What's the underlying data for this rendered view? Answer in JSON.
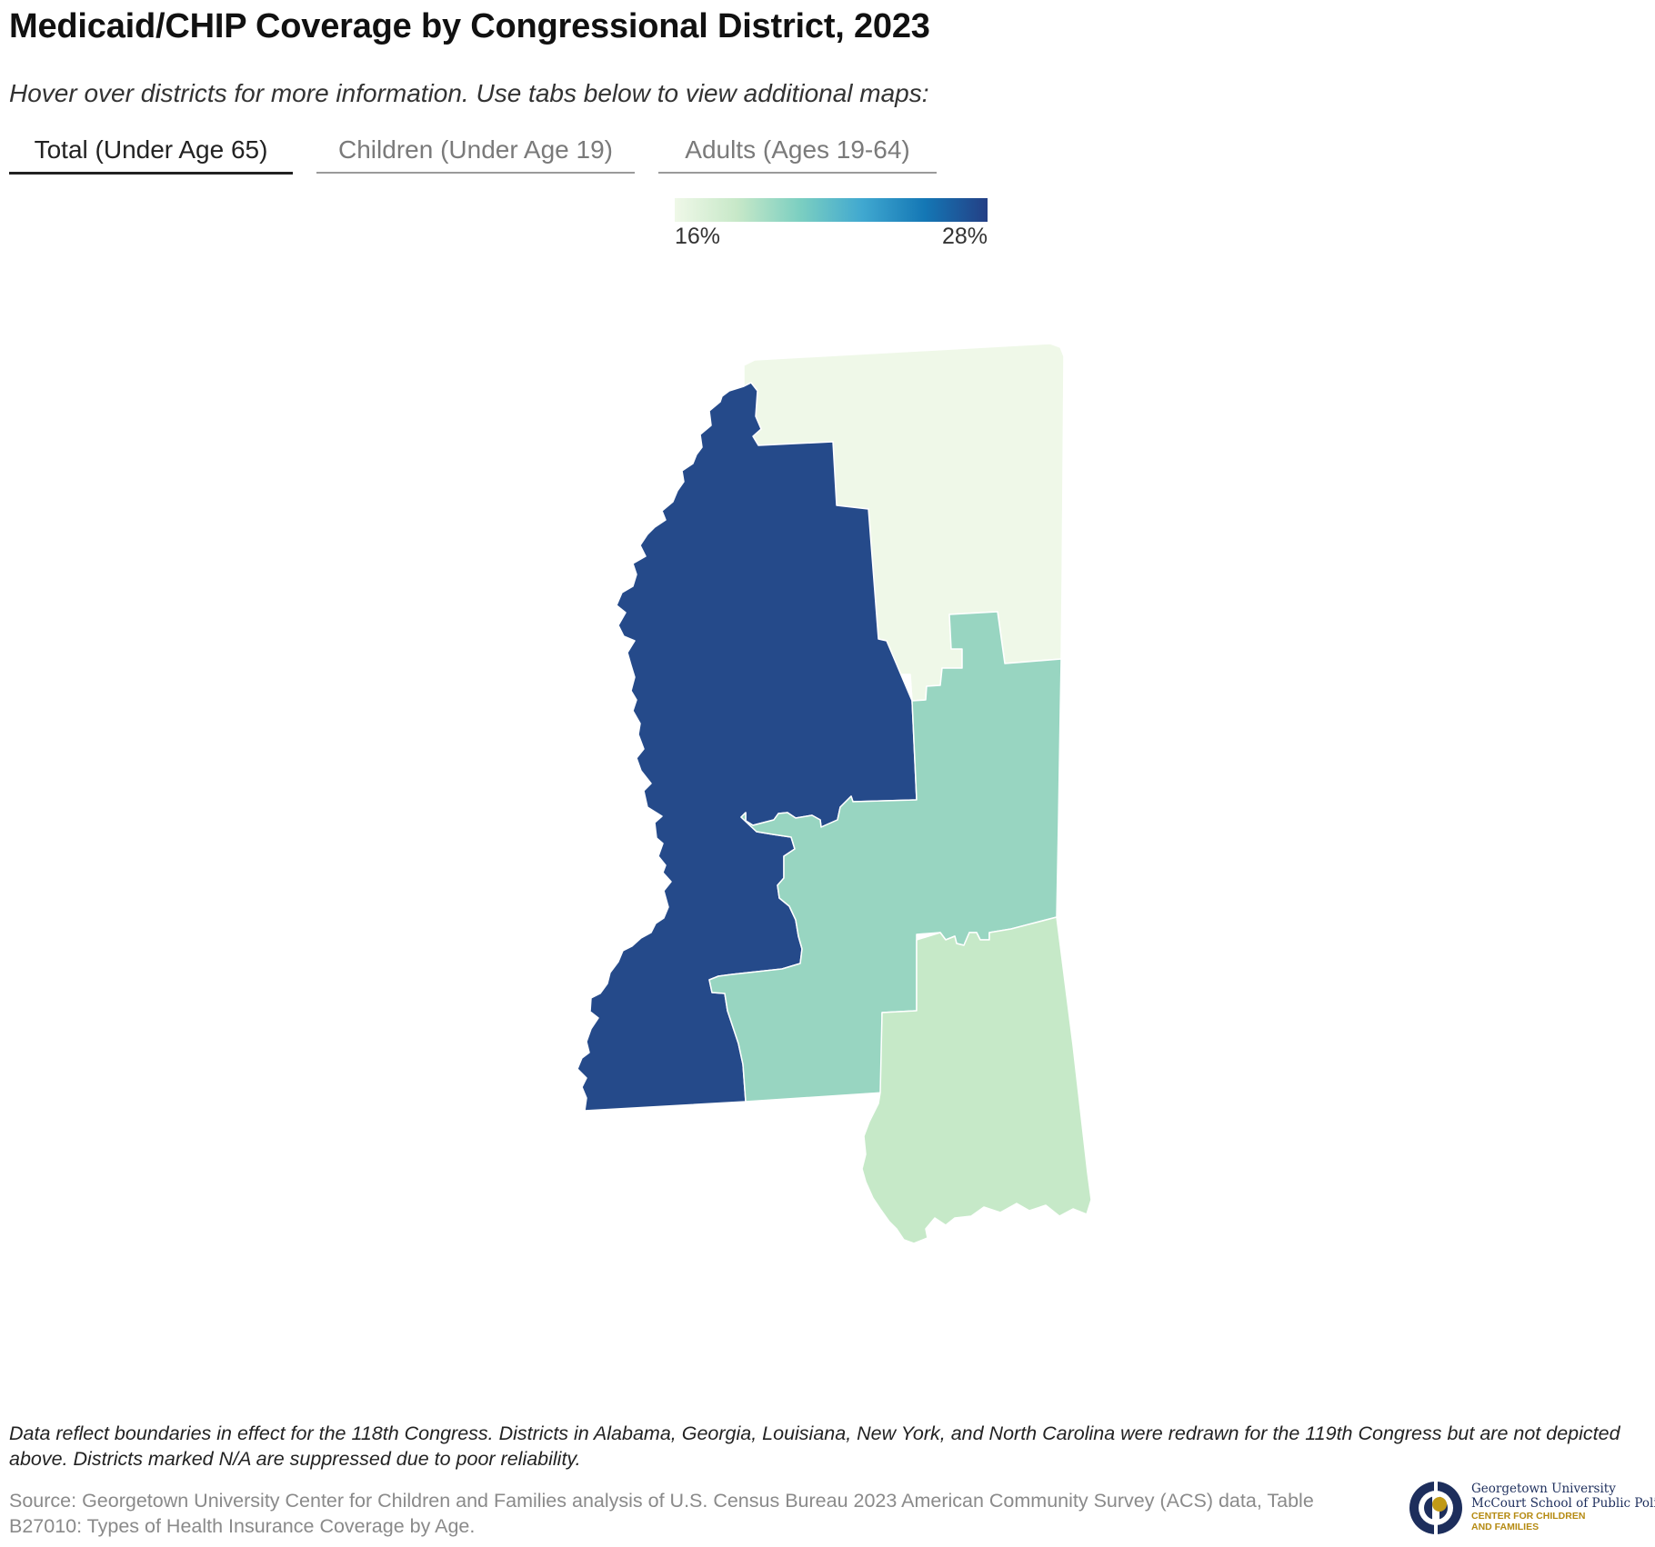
{
  "title": "Medicaid/CHIP Coverage by Congressional District, 2023",
  "subtitle": "Hover over districts for more information. Use tabs below to view additional maps:",
  "tabs": [
    {
      "label": "Total (Under Age 65)",
      "active": true
    },
    {
      "label": "Children (Under Age 19)",
      "active": false
    },
    {
      "label": "Adults (Ages 19-64)",
      "active": false
    }
  ],
  "legend": {
    "min_label": "16%",
    "max_label": "28%",
    "colors": [
      "#eff8e8",
      "#c7e8c8",
      "#7ccfc1",
      "#40a8d0",
      "#1477b5",
      "#243f85"
    ]
  },
  "map": {
    "districts": [
      {
        "id": "MS-1",
        "fill": "#eff8e8"
      },
      {
        "id": "MS-2",
        "fill": "#254a8a"
      },
      {
        "id": "MS-3",
        "fill": "#98d5c1"
      },
      {
        "id": "MS-4",
        "fill": "#c6e9c8"
      }
    ]
  },
  "footnote": "Data reflect boundaries in effect for the 118th Congress. Districts in Alabama, Georgia, Louisiana, New York, and North Carolina were redrawn for the 119th Congress but are not depicted above. Districts marked N/A are suppressed due to poor reliability.",
  "source": "Source: Georgetown University Center for Children and Families analysis of U.S. Census Bureau 2023 American Community Survey (ACS) data, Table B27010: Types of Health Insurance Coverage by Age.",
  "logo": {
    "line1": "Georgetown University",
    "line2": "McCourt School of Public Policy",
    "line3": "CENTER FOR CHILDREN",
    "line4": "AND FAMILIES",
    "colors": {
      "navy": "#1d2e5c",
      "gold": "#c19a16"
    }
  }
}
